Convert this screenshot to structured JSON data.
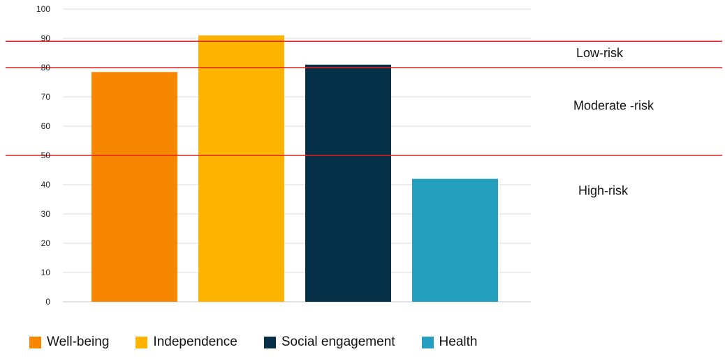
{
  "chart_data": {
    "type": "bar",
    "categories": [
      "Well-being",
      "Independence",
      "Social engagement",
      "Health"
    ],
    "values": [
      78.5,
      91,
      81,
      42
    ],
    "colors": [
      "#f88700",
      "#fdb400",
      "#062f48",
      "#259fbe"
    ],
    "ylim": [
      0,
      100
    ],
    "yticks": [
      "0",
      "10",
      "20",
      "30",
      "40",
      "50",
      "60",
      "70",
      "80",
      "90",
      "100"
    ],
    "grid": true,
    "legend_position": "bottom",
    "threshold_lines": [
      {
        "value": 89,
        "color": "#e02020"
      },
      {
        "value": 80,
        "color": "#e02020"
      },
      {
        "value": 50,
        "color": "#e02020"
      }
    ],
    "zone_labels": [
      {
        "text": "Low-risk",
        "value": 85
      },
      {
        "text": "Moderate -risk",
        "value": 67
      },
      {
        "text": "High-risk",
        "value": 38
      }
    ]
  }
}
